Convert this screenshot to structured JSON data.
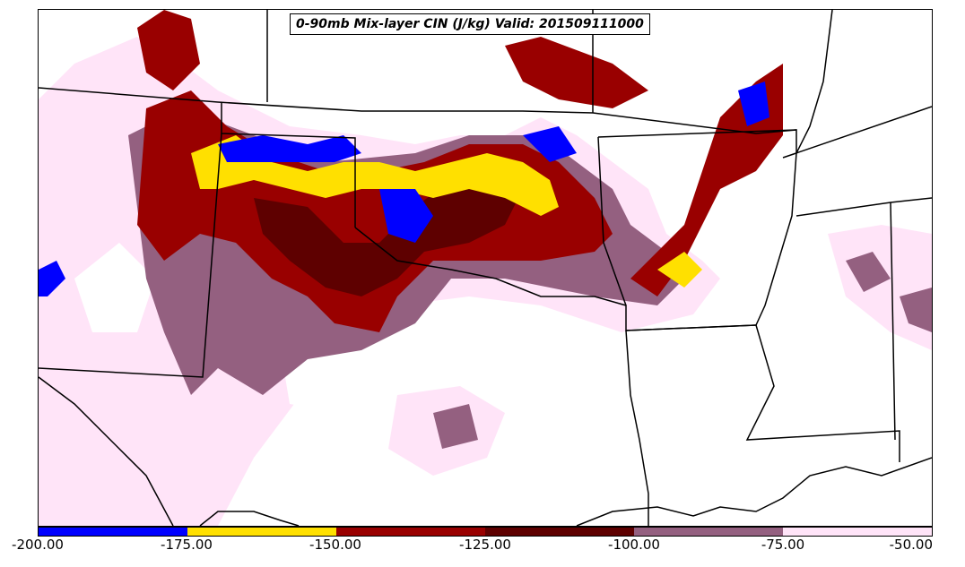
{
  "title": "0-90mb Mix-layer CIN (J/kg) Valid: 201509111000",
  "legend": {
    "ticks": [
      "-200.00",
      "-175.00",
      "-150.00",
      "-125.00",
      "-100.00",
      "-75.00",
      "-50.00"
    ],
    "colors": [
      "#0000ff",
      "#ffe000",
      "#990000",
      "#5e0000",
      "#946080",
      "#ffe4f8"
    ]
  },
  "palette": {
    "blue": "#0000ff",
    "yellow": "#ffe000",
    "red": "#990000",
    "darkred": "#5e0000",
    "mauve": "#946080",
    "pink": "#ffe4f8"
  }
}
